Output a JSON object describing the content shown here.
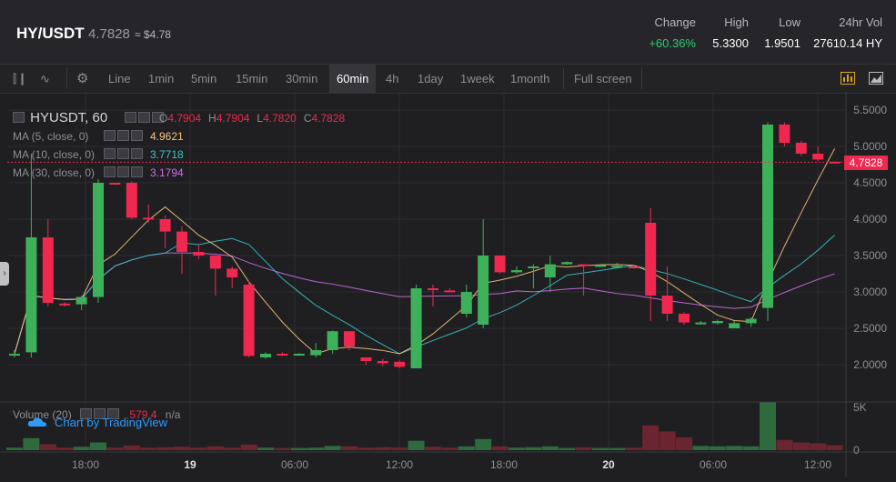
{
  "header": {
    "pair": "HY/USDT",
    "price": "4.7828",
    "usd_price": "≈ $4.78",
    "stats": [
      {
        "label": "Change",
        "value": "+60.36%",
        "color": "#2ecc71"
      },
      {
        "label": "High",
        "value": "5.3300",
        "color": "#ffffff"
      },
      {
        "label": "Low",
        "value": "1.9501",
        "color": "#ffffff"
      },
      {
        "label": "24hr Vol",
        "value": "27610.14 HY",
        "color": "#ffffff"
      }
    ]
  },
  "toolbar": {
    "items": [
      "Line",
      "1min",
      "5min",
      "15min",
      "30min",
      "60min",
      "4h",
      "1day",
      "1week",
      "1month",
      "Full screen"
    ],
    "active": "60min"
  },
  "legend": {
    "symbol": "HYUSDT, 60",
    "ohlc": [
      {
        "k": "O",
        "v": "4.7904"
      },
      {
        "k": "H",
        "v": "4.7904"
      },
      {
        "k": "L",
        "v": "4.7820"
      },
      {
        "k": "C",
        "v": "4.7828"
      }
    ],
    "ma": [
      {
        "label": "MA (5, close, 0)",
        "value": "4.9621",
        "color": "#f5c47a"
      },
      {
        "label": "MA (10, close, 0)",
        "value": "3.7718",
        "color": "#36c3c8"
      },
      {
        "label": "MA (30, close, 0)",
        "value": "3.1794",
        "color": "#d26ce8"
      }
    ],
    "volume_label": "Volume (20)",
    "volume_value": "579.4",
    "volume_na": "n/a",
    "watermark": "Chart by TradingView"
  },
  "last_price_tag": "4.7828",
  "chart_data": {
    "type": "candlestick",
    "price_axis": {
      "ticks": [
        "5.5000",
        "5.0000",
        "4.5000",
        "4.0000",
        "3.5000",
        "3.0000",
        "2.5000",
        "2.0000"
      ],
      "ylim": [
        1.55,
        5.55
      ]
    },
    "volume_axis": {
      "ticks": [
        "5K",
        "0"
      ],
      "ylim": [
        0,
        5000
      ]
    },
    "time_axis": {
      "ticks": [
        "18:00",
        "19",
        "06:00",
        "12:00",
        "18:00",
        "20",
        "06:00",
        "12:00"
      ]
    },
    "colors": {
      "up": "#3db15a",
      "down": "#f0284f",
      "up_volume": "#2d6a3d",
      "down_volume": "#6b2530"
    },
    "candles": [
      {
        "o": 2.15,
        "h": 2.2,
        "l": 2.1,
        "c": 2.15,
        "v": 300
      },
      {
        "o": 2.17,
        "h": 4.9,
        "l": 2.1,
        "c": 3.75,
        "v": 1400
      },
      {
        "o": 3.75,
        "h": 4.0,
        "l": 2.8,
        "c": 2.85,
        "v": 700
      },
      {
        "o": 2.84,
        "h": 2.86,
        "l": 2.8,
        "c": 2.83,
        "v": 300
      },
      {
        "o": 2.83,
        "h": 2.95,
        "l": 2.75,
        "c": 2.93,
        "v": 400
      },
      {
        "o": 2.93,
        "h": 4.55,
        "l": 2.85,
        "c": 4.5,
        "v": 900
      },
      {
        "o": 4.5,
        "h": 4.5,
        "l": 4.47,
        "c": 4.49,
        "v": 300
      },
      {
        "o": 4.5,
        "h": 4.52,
        "l": 4.0,
        "c": 4.02,
        "v": 550
      },
      {
        "o": 4.02,
        "h": 4.2,
        "l": 3.95,
        "c": 4.0,
        "v": 300
      },
      {
        "o": 4.0,
        "h": 4.05,
        "l": 3.6,
        "c": 3.83,
        "v": 350
      },
      {
        "o": 3.83,
        "h": 3.9,
        "l": 3.25,
        "c": 3.55,
        "v": 400
      },
      {
        "o": 3.55,
        "h": 3.65,
        "l": 3.45,
        "c": 3.5,
        "v": 300
      },
      {
        "o": 3.5,
        "h": 3.5,
        "l": 2.95,
        "c": 3.32,
        "v": 450
      },
      {
        "o": 3.32,
        "h": 3.35,
        "l": 3.05,
        "c": 3.2,
        "v": 300
      },
      {
        "o": 3.1,
        "h": 3.15,
        "l": 2.1,
        "c": 2.12,
        "v": 650
      },
      {
        "o": 2.1,
        "h": 2.17,
        "l": 2.08,
        "c": 2.15,
        "v": 300
      },
      {
        "o": 2.15,
        "h": 2.17,
        "l": 2.12,
        "c": 2.14,
        "v": 250
      },
      {
        "o": 2.14,
        "h": 2.16,
        "l": 2.13,
        "c": 2.15,
        "v": 250
      },
      {
        "o": 2.13,
        "h": 2.3,
        "l": 2.1,
        "c": 2.2,
        "v": 300
      },
      {
        "o": 2.2,
        "h": 2.47,
        "l": 2.15,
        "c": 2.46,
        "v": 500
      },
      {
        "o": 2.46,
        "h": 2.46,
        "l": 2.2,
        "c": 2.25,
        "v": 450
      },
      {
        "o": 2.1,
        "h": 2.1,
        "l": 2.0,
        "c": 2.05,
        "v": 300
      },
      {
        "o": 2.05,
        "h": 2.08,
        "l": 1.98,
        "c": 2.02,
        "v": 350
      },
      {
        "o": 2.04,
        "h": 2.06,
        "l": 1.95,
        "c": 1.97,
        "v": 300
      },
      {
        "o": 1.95,
        "h": 3.1,
        "l": 1.95,
        "c": 3.05,
        "v": 1100
      },
      {
        "o": 3.05,
        "h": 3.1,
        "l": 2.8,
        "c": 3.03,
        "v": 400
      },
      {
        "o": 3.02,
        "h": 3.05,
        "l": 3.0,
        "c": 3.01,
        "v": 300
      },
      {
        "o": 2.7,
        "h": 3.1,
        "l": 2.65,
        "c": 3.0,
        "v": 450
      },
      {
        "o": 2.55,
        "h": 4.0,
        "l": 2.5,
        "c": 3.5,
        "v": 1300
      },
      {
        "o": 3.5,
        "h": 3.5,
        "l": 3.25,
        "c": 3.27,
        "v": 450
      },
      {
        "o": 3.27,
        "h": 3.35,
        "l": 3.25,
        "c": 3.3,
        "v": 300
      },
      {
        "o": 3.33,
        "h": 3.38,
        "l": 3.05,
        "c": 3.35,
        "v": 350
      },
      {
        "o": 3.2,
        "h": 3.5,
        "l": 3.0,
        "c": 3.38,
        "v": 450
      },
      {
        "o": 3.38,
        "h": 3.42,
        "l": 3.37,
        "c": 3.41,
        "v": 250
      },
      {
        "o": 3.38,
        "h": 3.38,
        "l": 2.95,
        "c": 3.36,
        "v": 350
      },
      {
        "o": 3.36,
        "h": 3.38,
        "l": 3.34,
        "c": 3.37,
        "v": 250
      },
      {
        "o": 3.36,
        "h": 3.4,
        "l": 3.34,
        "c": 3.36,
        "v": 250
      },
      {
        "o": 3.35,
        "h": 3.37,
        "l": 3.32,
        "c": 3.33,
        "v": 300
      },
      {
        "o": 3.95,
        "h": 4.15,
        "l": 2.6,
        "c": 2.95,
        "v": 2900
      },
      {
        "o": 2.95,
        "h": 3.35,
        "l": 2.6,
        "c": 2.7,
        "v": 2200
      },
      {
        "o": 2.7,
        "h": 2.72,
        "l": 2.55,
        "c": 2.58,
        "v": 1500
      },
      {
        "o": 2.58,
        "h": 2.6,
        "l": 2.55,
        "c": 2.58,
        "v": 500
      },
      {
        "o": 2.57,
        "h": 2.62,
        "l": 2.55,
        "c": 2.6,
        "v": 450
      },
      {
        "o": 2.5,
        "h": 2.6,
        "l": 2.5,
        "c": 2.57,
        "v": 500
      },
      {
        "o": 2.57,
        "h": 2.65,
        "l": 2.52,
        "c": 2.63,
        "v": 450
      },
      {
        "o": 2.78,
        "h": 5.33,
        "l": 2.6,
        "c": 5.3,
        "v": 5600
      },
      {
        "o": 5.3,
        "h": 5.33,
        "l": 5.0,
        "c": 5.05,
        "v": 1200
      },
      {
        "o": 5.05,
        "h": 5.08,
        "l": 4.87,
        "c": 4.9,
        "v": 900
      },
      {
        "o": 4.9,
        "h": 5.0,
        "l": 4.8,
        "c": 4.82,
        "v": 800
      },
      {
        "o": 4.79,
        "h": 4.79,
        "l": 4.78,
        "c": 4.78,
        "v": 580
      }
    ]
  }
}
